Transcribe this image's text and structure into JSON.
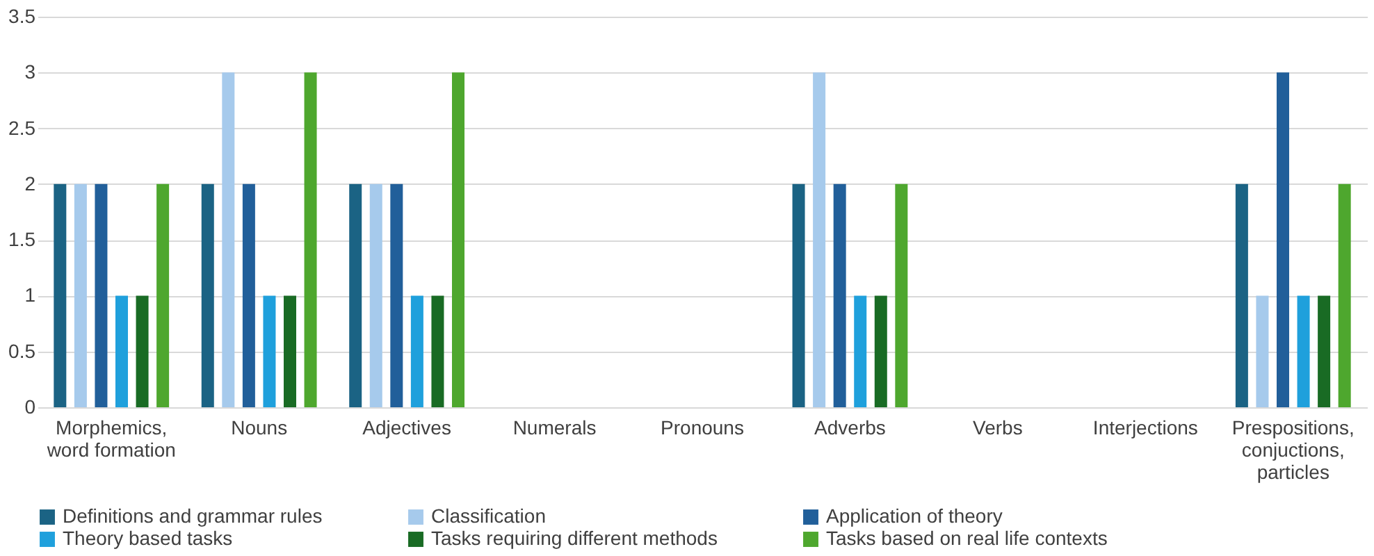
{
  "chart_data": {
    "type": "bar",
    "categories": [
      "Morphemics, word formation",
      "Nouns",
      "Adjectives",
      "Numerals",
      "Pronouns",
      "Adverbs",
      "Verbs",
      "Interjections",
      "Prespositions, conjuctions, particles"
    ],
    "series": [
      {
        "name": "Definitions and grammar rules",
        "color": "#1b6384",
        "values": [
          2,
          2,
          2,
          null,
          null,
          2,
          null,
          null,
          2
        ]
      },
      {
        "name": "Classification",
        "color": "#a6caec",
        "values": [
          2,
          3,
          2,
          null,
          null,
          3,
          null,
          null,
          1
        ]
      },
      {
        "name": "Application of theory",
        "color": "#215f9a",
        "values": [
          2,
          2,
          2,
          null,
          null,
          2,
          null,
          null,
          3
        ]
      },
      {
        "name": "Theory based tasks",
        "color": "#1fa0dc",
        "values": [
          1,
          1,
          1,
          null,
          null,
          1,
          null,
          null,
          1
        ]
      },
      {
        "name": "Tasks requiring different methods",
        "color": "#196b24",
        "values": [
          1,
          1,
          1,
          null,
          null,
          1,
          null,
          null,
          1
        ]
      },
      {
        "name": "Tasks based on real life contexts",
        "color": "#4ea72e",
        "values": [
          2,
          3,
          3,
          null,
          null,
          2,
          null,
          null,
          2
        ]
      }
    ],
    "ylim": [
      0,
      3.5
    ],
    "yticks": [
      0,
      0.5,
      1,
      1.5,
      2,
      2.5,
      3,
      3.5
    ],
    "grid": "y",
    "legend": "bottom"
  }
}
